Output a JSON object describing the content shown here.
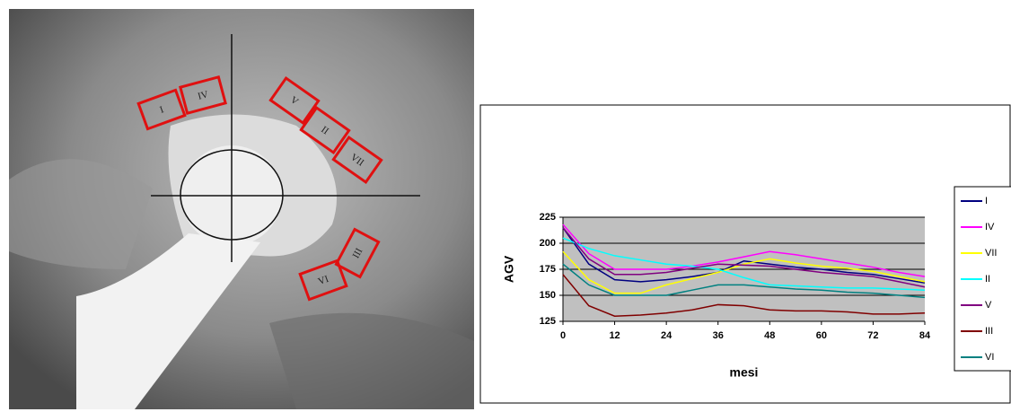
{
  "xray": {
    "regions": [
      "I",
      "IV",
      "V",
      "II",
      "VII",
      "III",
      "VI"
    ]
  },
  "chart_data": {
    "type": "line",
    "xlabel": "mesi",
    "ylabel": "AGV",
    "x": [
      0,
      6,
      12,
      18,
      24,
      30,
      36,
      42,
      48,
      54,
      60,
      66,
      72,
      78,
      84
    ],
    "xlim": [
      0,
      84
    ],
    "xticks": [
      0,
      12,
      24,
      36,
      48,
      60,
      72,
      84
    ],
    "ylim": [
      125,
      225
    ],
    "yticks": [
      125,
      150,
      175,
      200,
      225
    ],
    "grid": true,
    "legend": "right",
    "series": [
      {
        "name": "I",
        "color": "#000080",
        "values": [
          215,
          180,
          165,
          163,
          165,
          168,
          172,
          183,
          180,
          177,
          175,
          172,
          170,
          166,
          162
        ]
      },
      {
        "name": "IV",
        "color": "#ff00ff",
        "values": [
          218,
          190,
          175,
          175,
          175,
          178,
          182,
          187,
          192,
          189,
          185,
          181,
          177,
          172,
          168
        ]
      },
      {
        "name": "VII",
        "color": "#ffff00",
        "values": [
          192,
          165,
          152,
          152,
          160,
          166,
          172,
          180,
          185,
          181,
          178,
          176,
          173,
          168,
          163
        ]
      },
      {
        "name": "II",
        "color": "#00ffff",
        "values": [
          205,
          195,
          188,
          184,
          180,
          178,
          175,
          167,
          160,
          159,
          158,
          157,
          157,
          156,
          155
        ]
      },
      {
        "name": "V",
        "color": "#800080",
        "values": [
          215,
          185,
          170,
          170,
          172,
          176,
          180,
          179,
          178,
          175,
          172,
          170,
          168,
          163,
          158
        ]
      },
      {
        "name": "III",
        "color": "#800000",
        "values": [
          170,
          140,
          130,
          131,
          133,
          136,
          141,
          140,
          136,
          135,
          135,
          134,
          132,
          132,
          133
        ]
      },
      {
        "name": "VI",
        "color": "#008080",
        "values": [
          180,
          160,
          150,
          150,
          150,
          155,
          160,
          160,
          158,
          156,
          155,
          153,
          152,
          150,
          148
        ]
      }
    ]
  }
}
